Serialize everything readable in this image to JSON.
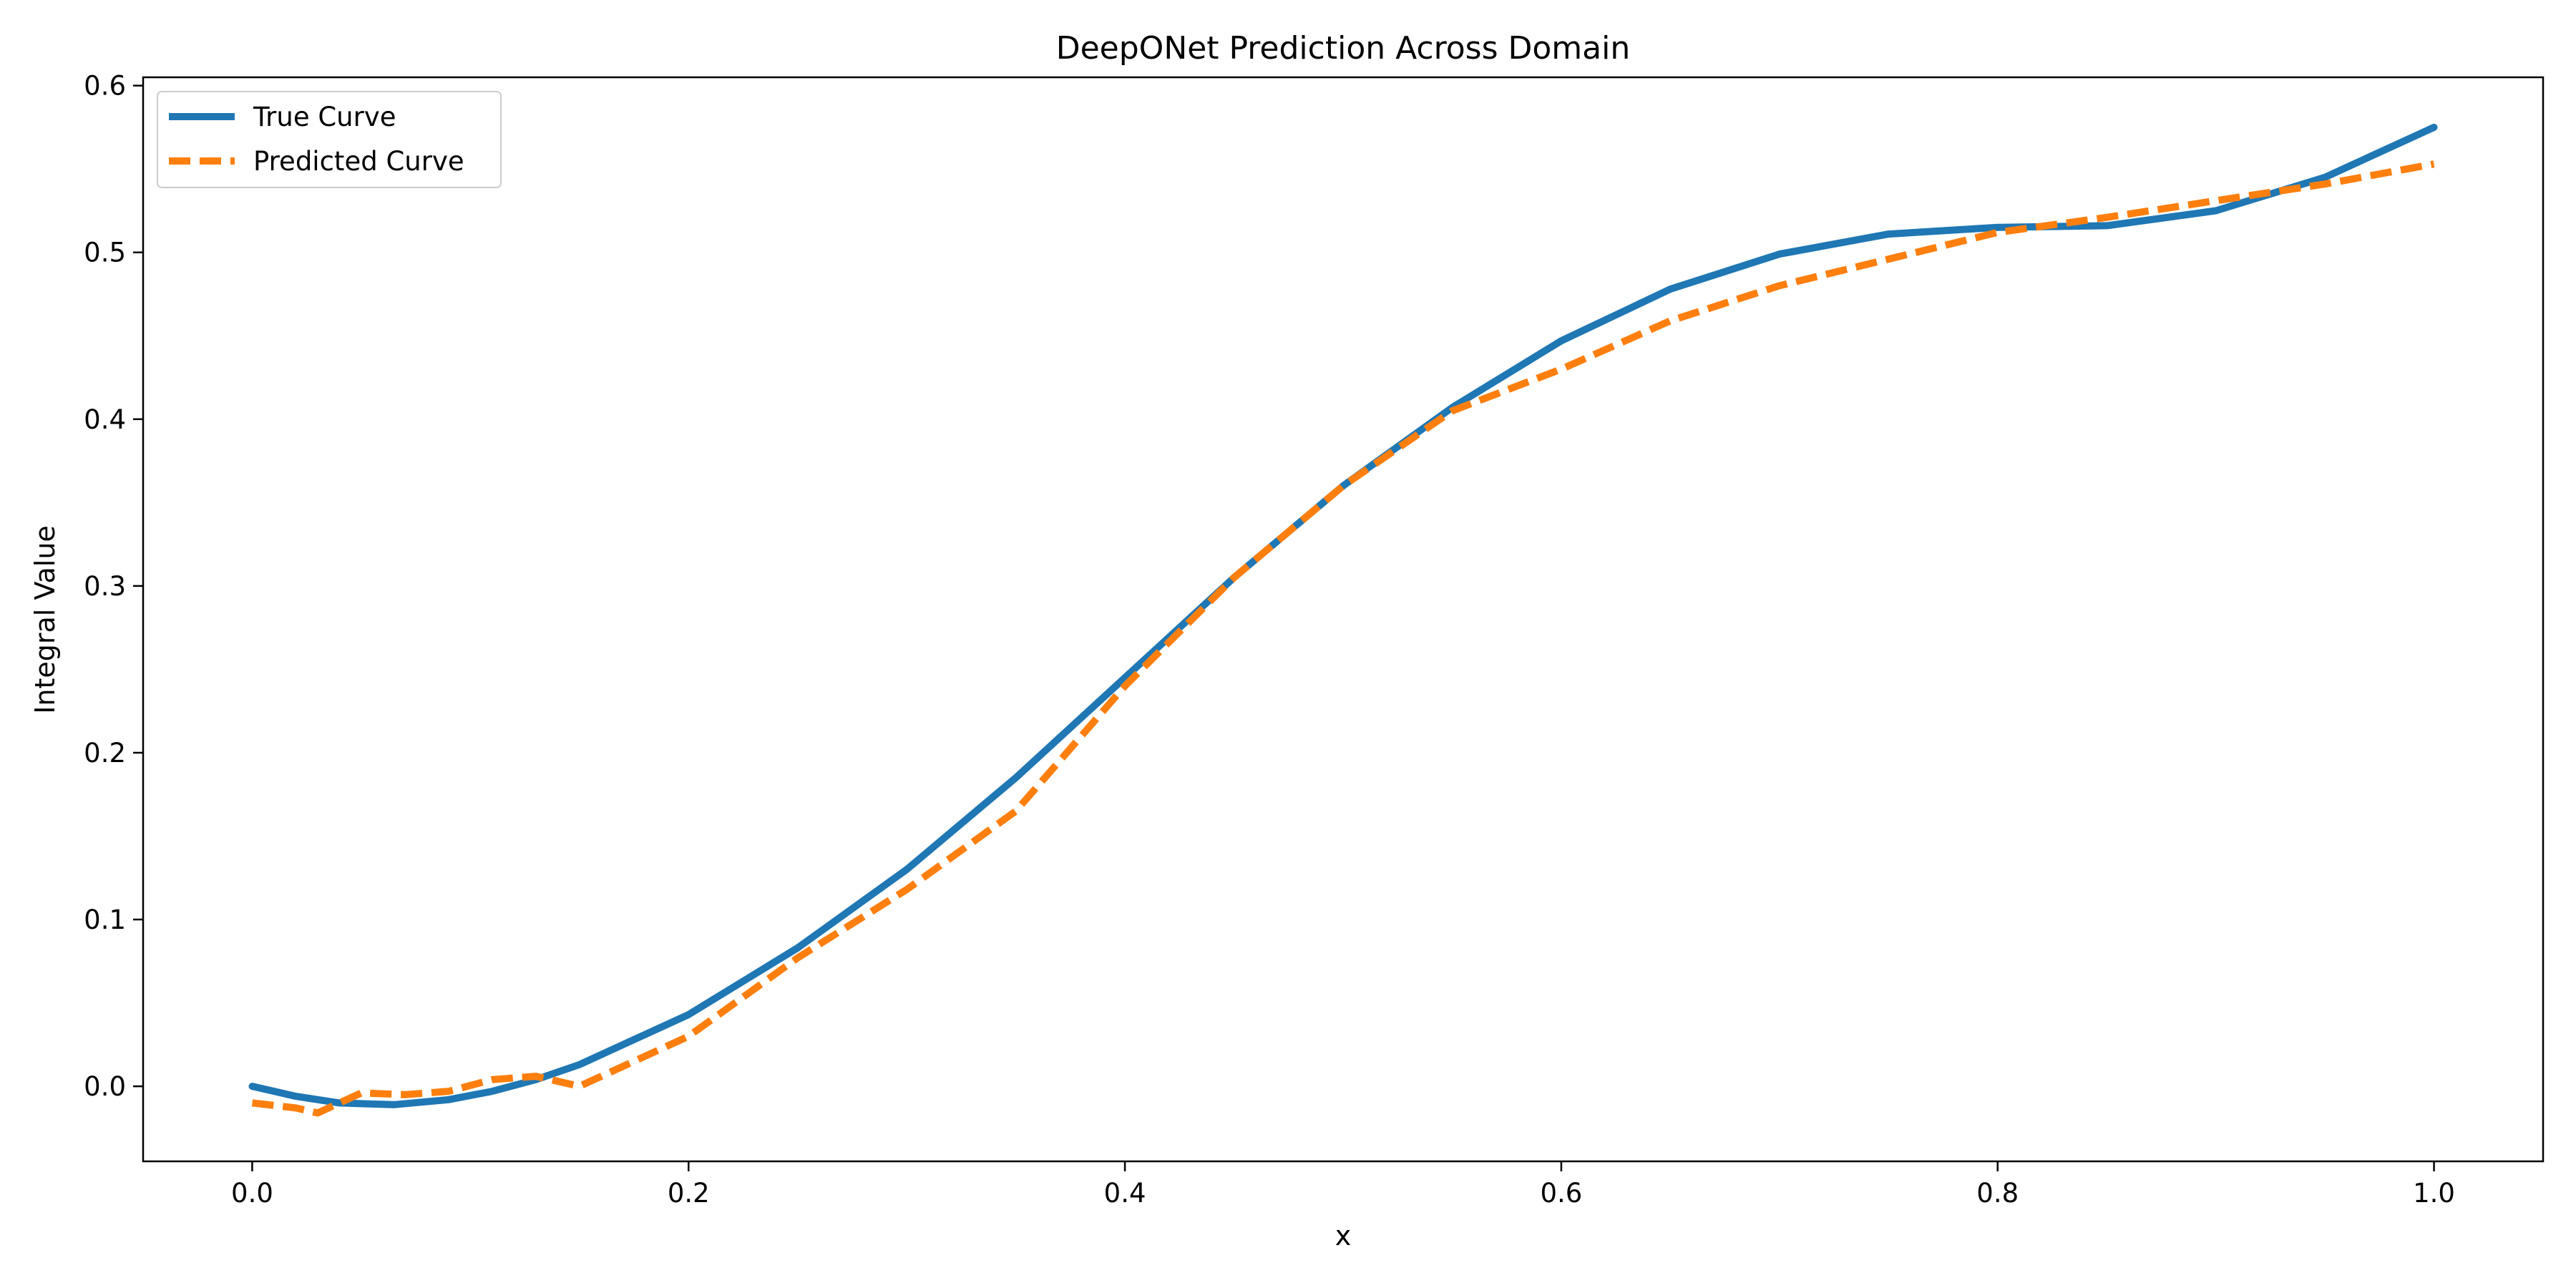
{
  "chart_data": {
    "type": "line",
    "title": "DeepONet Prediction Across Domain",
    "xlabel": "x",
    "ylabel": "Integral Value",
    "xlim": [
      -0.05,
      1.05
    ],
    "ylim": [
      -0.045,
      0.605
    ],
    "xticks": [
      0.0,
      0.2,
      0.4,
      0.6,
      0.8,
      1.0
    ],
    "xtick_labels": [
      "0.0",
      "0.2",
      "0.4",
      "0.6",
      "0.8",
      "1.0"
    ],
    "yticks": [
      0.0,
      0.1,
      0.2,
      0.3,
      0.4,
      0.5,
      0.6
    ],
    "ytick_labels": [
      "0.0",
      "0.1",
      "0.2",
      "0.3",
      "0.4",
      "0.5",
      "0.6"
    ],
    "grid": false,
    "legend_position": "upper-left",
    "series": [
      {
        "name": "True Curve",
        "color": "#1f77b4",
        "style": "solid",
        "x": [
          0.0,
          0.02,
          0.04,
          0.065,
          0.09,
          0.11,
          0.13,
          0.15,
          0.2,
          0.25,
          0.3,
          0.35,
          0.4,
          0.45,
          0.5,
          0.55,
          0.6,
          0.65,
          0.7,
          0.75,
          0.8,
          0.85,
          0.9,
          0.95,
          1.0
        ],
        "y": [
          0.0,
          -0.006,
          -0.01,
          -0.011,
          -0.008,
          -0.003,
          0.004,
          0.013,
          0.043,
          0.083,
          0.13,
          0.185,
          0.245,
          0.305,
          0.36,
          0.407,
          0.447,
          0.478,
          0.499,
          0.511,
          0.515,
          0.516,
          0.525,
          0.545,
          0.575
        ]
      },
      {
        "name": "Predicted Curve",
        "color": "#ff7f0e",
        "style": "dashed",
        "x": [
          0.0,
          0.02,
          0.03,
          0.05,
          0.07,
          0.09,
          0.11,
          0.13,
          0.15,
          0.2,
          0.25,
          0.3,
          0.35,
          0.4,
          0.45,
          0.5,
          0.55,
          0.6,
          0.65,
          0.7,
          0.75,
          0.8,
          0.85,
          0.9,
          0.95,
          1.0
        ],
        "y": [
          -0.01,
          -0.013,
          -0.016,
          -0.004,
          -0.005,
          -0.003,
          0.004,
          0.006,
          0.0,
          0.03,
          0.077,
          0.118,
          0.165,
          0.24,
          0.305,
          0.36,
          0.405,
          0.43,
          0.459,
          0.48,
          0.496,
          0.512,
          0.521,
          0.531,
          0.541,
          0.553
        ]
      }
    ]
  }
}
